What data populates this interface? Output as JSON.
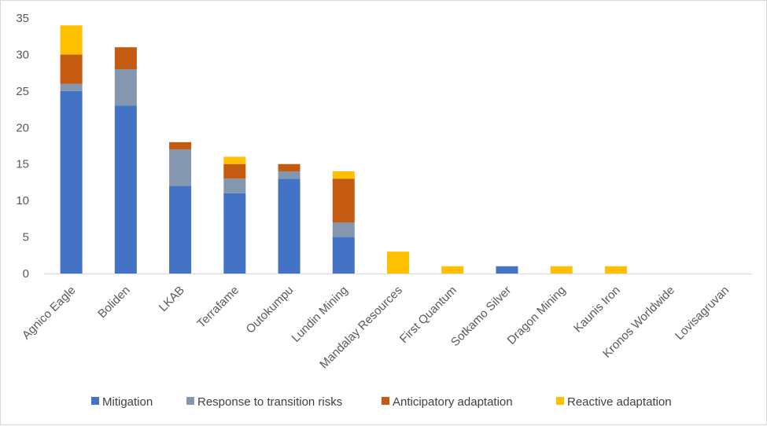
{
  "chart_data": {
    "type": "bar",
    "stacked": true,
    "title": "",
    "xlabel": "",
    "ylabel": "",
    "ylim": [
      0,
      35
    ],
    "yticks": [
      0,
      5,
      10,
      15,
      20,
      25,
      30,
      35
    ],
    "grid": false,
    "legend_position": "bottom",
    "categories": [
      "Agnico Eagle",
      "Boliden",
      "LKAB",
      "Terrafame",
      "Outokumpu",
      "Lundin Mining",
      "Mandalay Resources",
      "First Quantum",
      "Sotkamo Silver",
      "Dragon Mining",
      "Kaunis Iron",
      "Kronos Worldwide",
      "Lovisagruvan"
    ],
    "series": [
      {
        "name": "Mitigation",
        "color": "#4472c4",
        "values": [
          25,
          23,
          12,
          11,
          13,
          5,
          0,
          0,
          1,
          0,
          0,
          0,
          0
        ]
      },
      {
        "name": "Response to transition risks",
        "color": "#8497b0",
        "values": [
          1,
          5,
          5,
          2,
          1,
          2,
          0,
          0,
          0,
          0,
          0,
          0,
          0
        ]
      },
      {
        "name": "Anticipatory adaptation",
        "color": "#c55a11",
        "values": [
          4,
          3,
          1,
          2,
          1,
          6,
          0,
          0,
          0,
          0,
          0,
          0,
          0
        ]
      },
      {
        "name": "Reactive adaptation",
        "color": "#ffc000",
        "values": [
          4,
          0,
          0,
          1,
          0,
          1,
          3,
          1,
          0,
          1,
          1,
          0,
          0
        ]
      }
    ]
  }
}
